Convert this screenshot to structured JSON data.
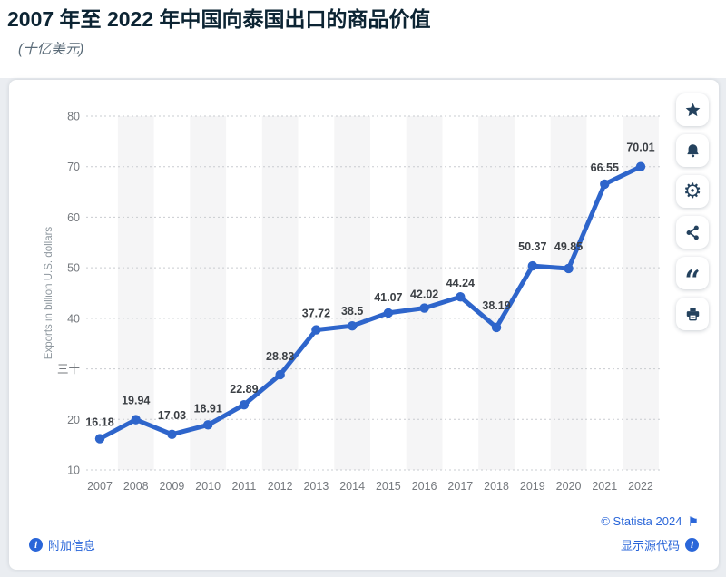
{
  "header": {
    "title": "2007 年至 2022 年中国向泰国出口的商品价值",
    "subtitle": "(十亿美元)"
  },
  "chart_data": {
    "type": "line",
    "title": "2007 年至 2022 年中国向泰国出口的商品价值",
    "subtitle_unit": "(十亿美元)",
    "categories": [
      "2007",
      "2008",
      "2009",
      "2010",
      "2011",
      "2012",
      "2013",
      "2014",
      "2015",
      "2016",
      "2017",
      "2018",
      "2019",
      "2020",
      "2021",
      "2022"
    ],
    "values": [
      16.18,
      19.94,
      17.03,
      18.91,
      22.89,
      28.83,
      37.72,
      38.5,
      41.07,
      42.02,
      44.24,
      38.19,
      50.37,
      49.85,
      66.55,
      70.01
    ],
    "value_labels": [
      "16.18",
      "19.94",
      "17.03",
      "18.91",
      "22.89",
      "28.83",
      "37.72",
      "38.5",
      "41.07",
      "42.02",
      "44.24",
      "38.19",
      "50.37",
      "49.85",
      "66.55",
      "70.01"
    ],
    "xlabel": "",
    "ylabel": "Exports in billion U.S. dollars",
    "ylim": [
      10,
      80
    ],
    "ytick_values": [
      10,
      20,
      30,
      40,
      50,
      60,
      70,
      80
    ],
    "ytick_labels": [
      "10",
      "20",
      "三十",
      "40",
      "50",
      "60",
      "70",
      "80"
    ],
    "grid": "horizontal-dashed",
    "legend": "none",
    "plot_bands": "alternating vertical stripes on even years",
    "colors": {
      "line": "#2e65cb",
      "marker": "#2e65cb",
      "value_label": "#3c4045",
      "axis_text": "#75797e",
      "axis_title": "#8e979e",
      "gridline": "#c9ccd0",
      "stripe": "#f5f5f6"
    }
  },
  "toolbar": {
    "buttons": [
      {
        "id": "favorite",
        "icon": "star-icon"
      },
      {
        "id": "alerts",
        "icon": "bell-icon"
      },
      {
        "id": "settings",
        "icon": "gear-icon"
      },
      {
        "id": "share",
        "icon": "share-icon"
      },
      {
        "id": "cite",
        "icon": "quote-icon"
      },
      {
        "id": "print",
        "icon": "printer-icon"
      }
    ]
  },
  "footer": {
    "additional_info_label": "附加信息",
    "copyright": "© Statista 2024",
    "show_source_label": "显示源代码"
  },
  "colors": {
    "link_blue": "#2a66d9",
    "toolbar_icon": "#24425e",
    "title_text": "#0c2433",
    "subtitle_text": "#5a6b78"
  }
}
